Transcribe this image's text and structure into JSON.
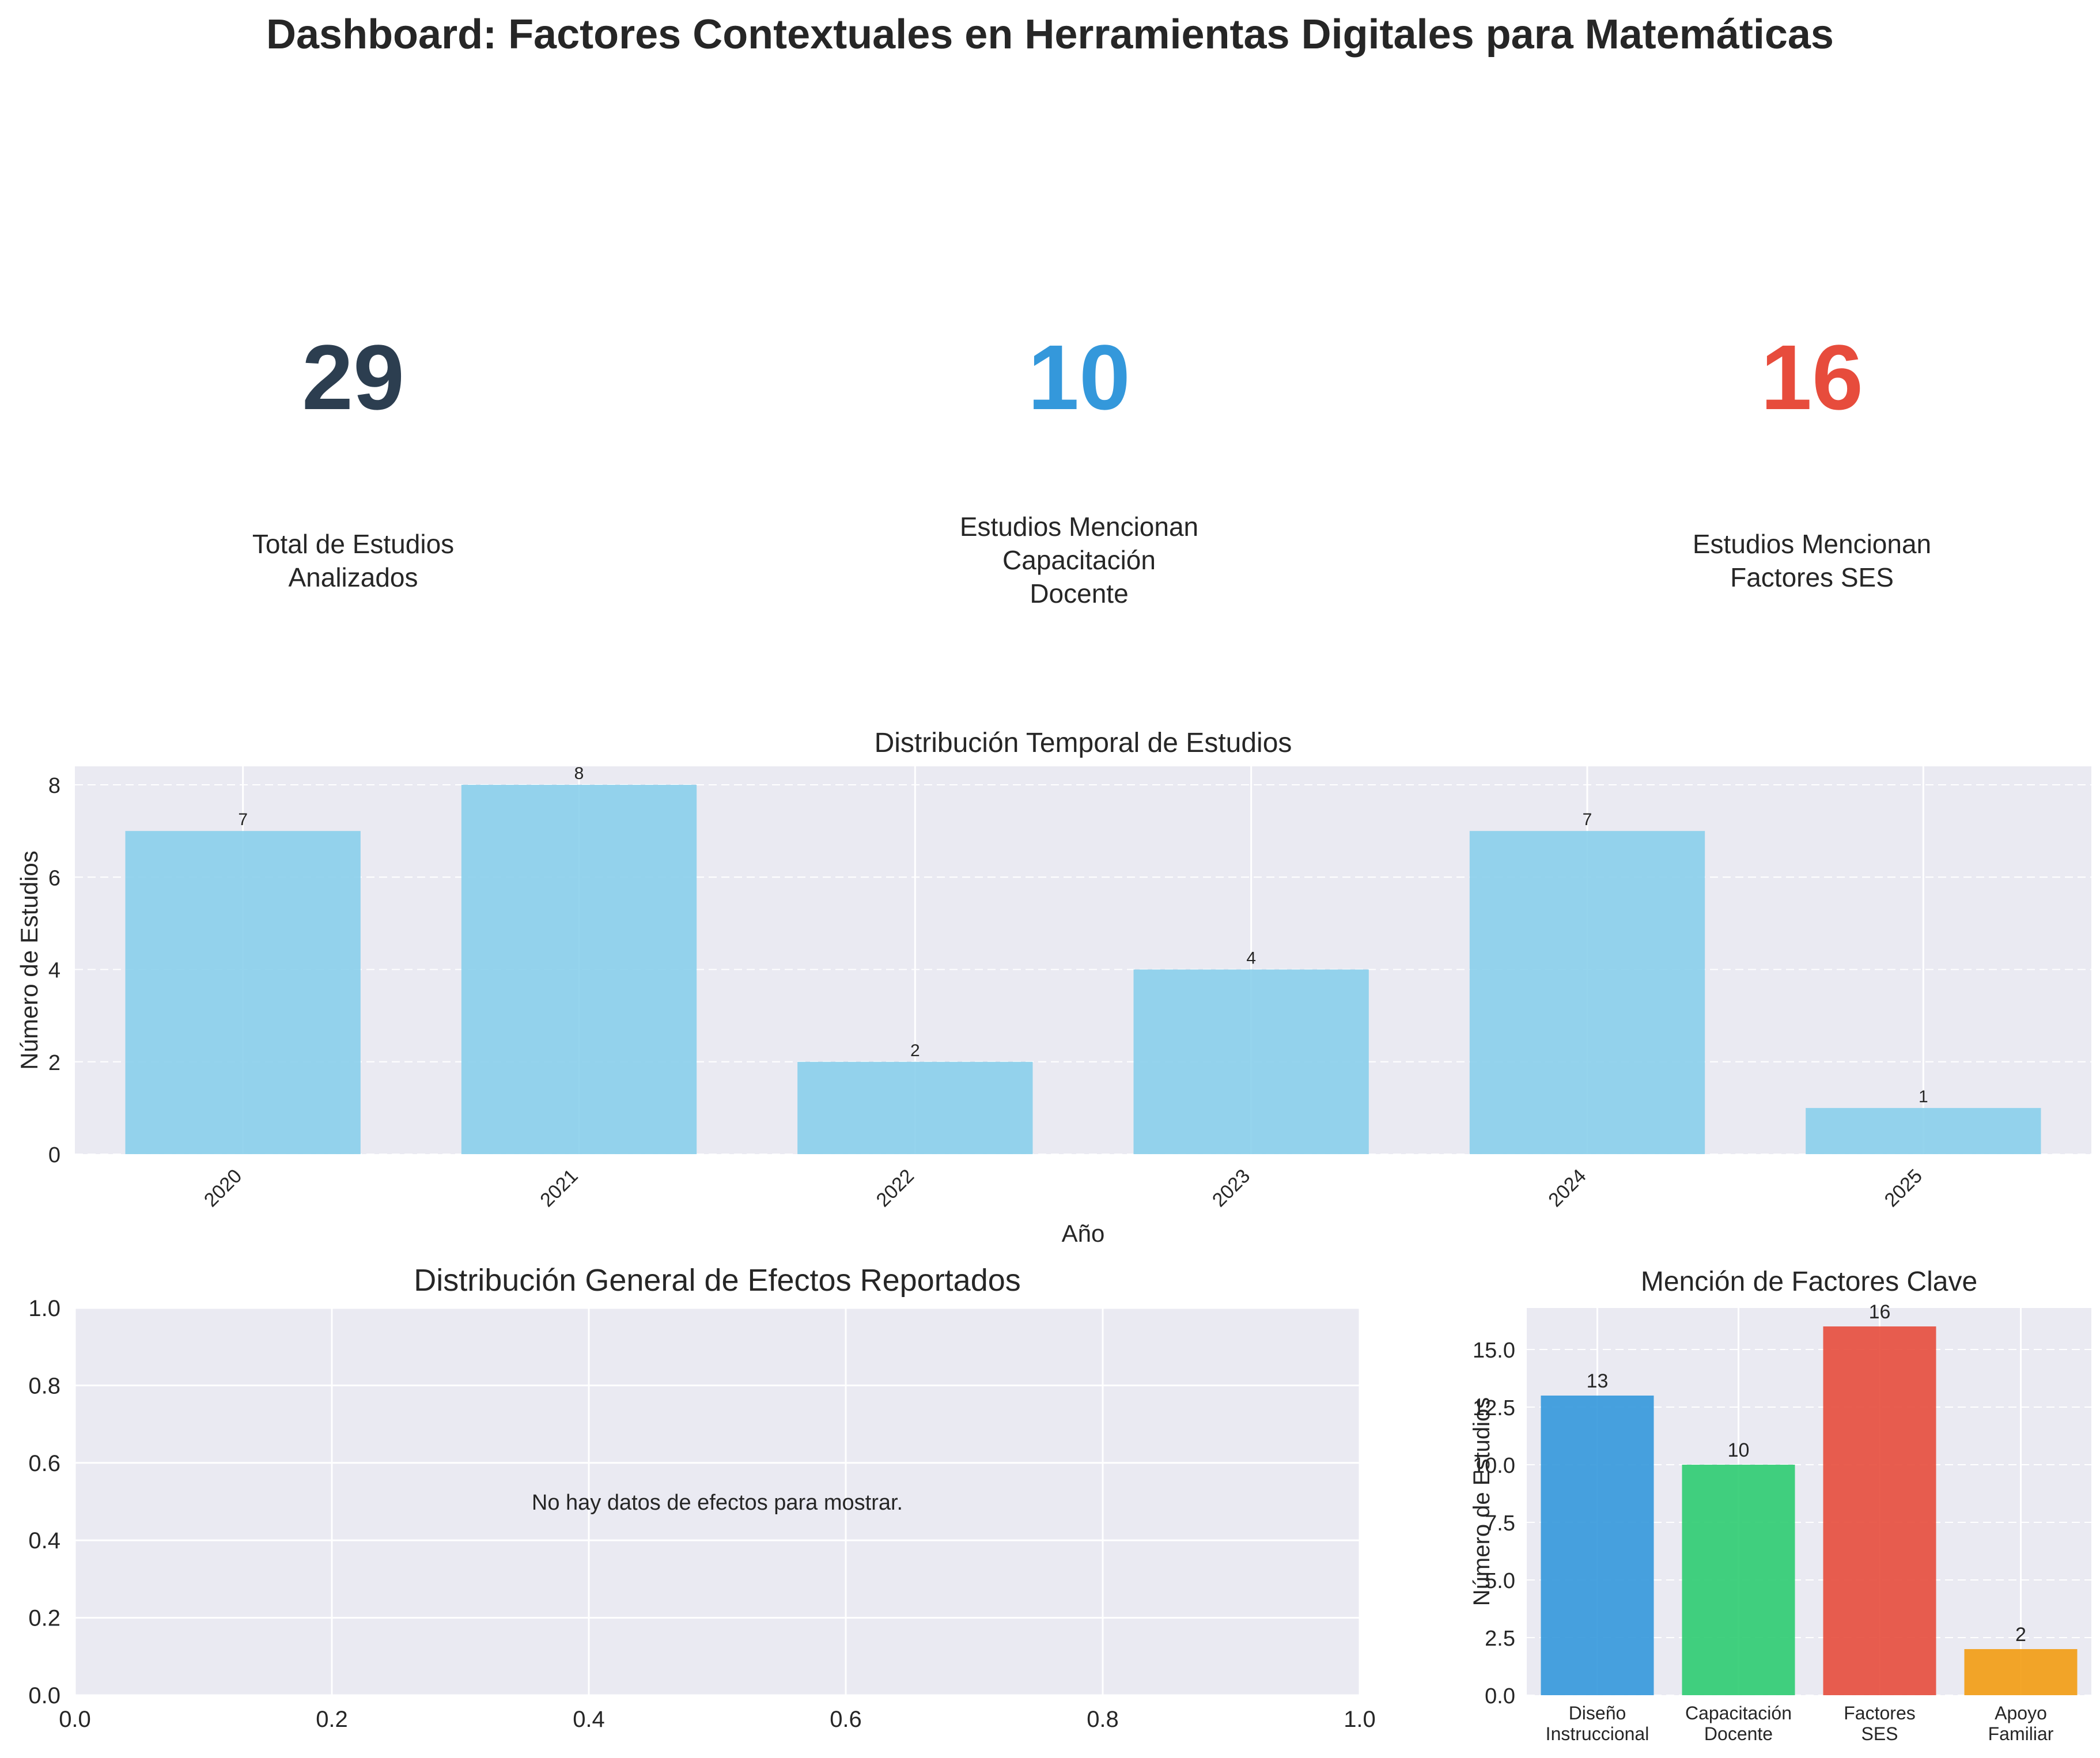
{
  "title": "Dashboard: Factores Contextuales en Herramientas Digitales para Matemáticas",
  "kpis": [
    {
      "value": "29",
      "label": "Total de Estudios\nAnalizados",
      "color": "#2c3e50"
    },
    {
      "value": "10",
      "label": "Estudios Mencionan\nCapacitación\nDocente",
      "color": "#3498db"
    },
    {
      "value": "16",
      "label": "Estudios Mencionan\nFactores SES",
      "color": "#e74c3c"
    }
  ],
  "chart_data": [
    {
      "type": "bar",
      "title": "Distribución Temporal de Estudios",
      "xlabel": "Año",
      "ylabel": "Número de Estudios",
      "categories": [
        "2020",
        "2021",
        "2022",
        "2023",
        "2024",
        "2025"
      ],
      "values": [
        7,
        8,
        2,
        4,
        7,
        1
      ],
      "ylim": [
        0,
        8.4
      ],
      "yticks": [
        0,
        2,
        4,
        6,
        8
      ],
      "color": "#89CFEB",
      "grid": true
    },
    {
      "type": "scatter",
      "title": "Distribución General de Efectos Reportados",
      "message": "No hay datos de efectos para mostrar.",
      "xlim": [
        0,
        1
      ],
      "ylim": [
        0,
        1
      ],
      "xticks": [
        "0.0",
        "0.2",
        "0.4",
        "0.6",
        "0.8",
        "1.0"
      ],
      "yticks": [
        "0.0",
        "0.2",
        "0.4",
        "0.6",
        "0.8",
        "1.0"
      ],
      "grid": true
    },
    {
      "type": "bar",
      "title": "Mención de Factores Clave",
      "ylabel": "Número de Estudios",
      "categories": [
        "Diseño\nInstruccional",
        "Capacitación\nDocente",
        "Factores\nSES",
        "Apoyo\nFamiliar"
      ],
      "values": [
        13,
        10,
        16,
        2
      ],
      "colors": [
        "#3498db",
        "#2ecc71",
        "#e74c3c",
        "#f39c12"
      ],
      "ylim": [
        0,
        16.8
      ],
      "yticks": [
        "0.0",
        "2.5",
        "5.0",
        "7.5",
        "10.0",
        "12.5",
        "15.0"
      ],
      "grid": true
    }
  ]
}
